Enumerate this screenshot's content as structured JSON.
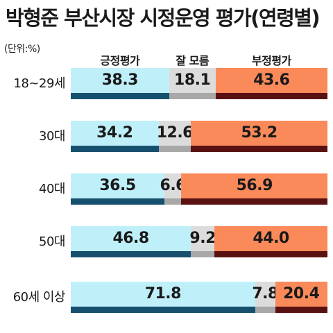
{
  "title": "박형준 부산시장 시정운영 평가(연령별)",
  "unit": "(단위:%)",
  "colors": {
    "positive": "#bff0fa",
    "positive_shade": "#17506e",
    "neutral": "#dcdcdc",
    "neutral_shade": "#a8a8a8",
    "negative": "#fb8a5a",
    "negative_shade": "#5a1111"
  },
  "chart_data": {
    "type": "bar",
    "stacked": true,
    "orientation": "horizontal",
    "categories": [
      "18~29세",
      "30대",
      "40대",
      "50대",
      "60세 이상"
    ],
    "series": [
      {
        "name": "긍정평가",
        "values": [
          38.3,
          34.2,
          36.5,
          46.8,
          71.8
        ]
      },
      {
        "name": "잘 모름",
        "values": [
          18.1,
          12.6,
          6.6,
          9.2,
          7.8
        ]
      },
      {
        "name": "부정평가",
        "values": [
          43.6,
          53.2,
          56.9,
          44.0,
          20.4
        ]
      }
    ],
    "value_labels": [
      [
        "38.3",
        "34.2",
        "36.5",
        "46.8",
        "71.8"
      ],
      [
        "18.1",
        "12.6",
        "6.6",
        "9.2",
        "7.8"
      ],
      [
        "43.6",
        "53.2",
        "56.9",
        "44.0",
        "20.4"
      ]
    ],
    "xlim": [
      0,
      100
    ],
    "legend": "top"
  }
}
